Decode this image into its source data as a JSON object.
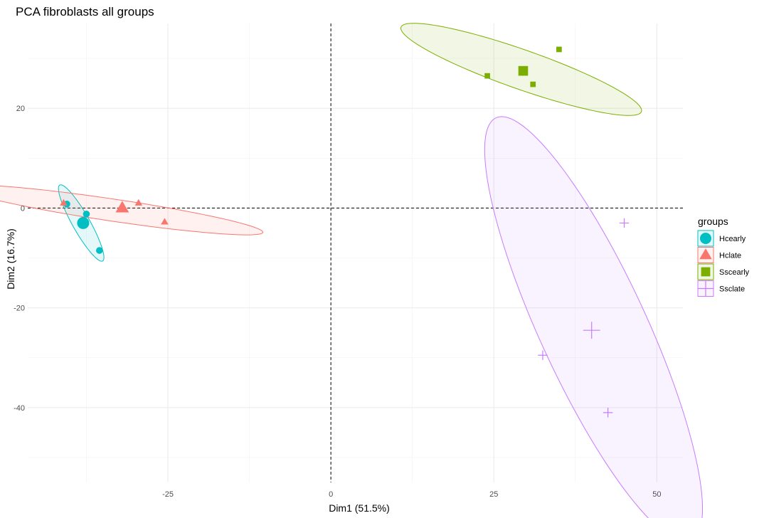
{
  "chart_data": {
    "type": "scatter",
    "title": "PCA fibroblasts all groups",
    "xlabel": "Dim1 (51.5%)",
    "ylabel": "Dim2 (16.7%)",
    "xlim": [
      -46.5,
      54
    ],
    "ylim": [
      -55,
      37
    ],
    "x_ticks": [
      -25,
      0,
      25,
      50
    ],
    "y_ticks": [
      20,
      0,
      -20,
      -40
    ],
    "x_tick_labels": [
      "-25",
      "0",
      "25",
      "50"
    ],
    "y_tick_labels": [
      "20",
      "0",
      "-20",
      "-40"
    ],
    "grid": true,
    "reference_lines": {
      "x": 0,
      "y": 0,
      "style": "dashed"
    },
    "legend": {
      "title": "groups",
      "position": "right"
    },
    "series": [
      {
        "name": "Hcearly",
        "color": "#00BFC4",
        "shape": "circle",
        "points": [
          [
            -40.5,
            0.8
          ],
          [
            -37.5,
            -1.2
          ],
          [
            -35.5,
            -8.5
          ]
        ],
        "centroid": [
          -38.0,
          -3.0
        ],
        "ellipse": {
          "center": [
            -38.3,
            -3.0
          ],
          "rx": 8.3,
          "ry": 1.4,
          "angle": -67
        }
      },
      {
        "name": "Hclate",
        "color": "#F8766D",
        "shape": "triangle",
        "points": [
          [
            -41,
            1.0
          ],
          [
            -29.5,
            1.0
          ],
          [
            -25.5,
            -2.8
          ]
        ],
        "centroid": [
          -32.0,
          0.0
        ],
        "ellipse": {
          "center": [
            -33.5,
            -0.4
          ],
          "rx": 23.5,
          "ry": 2.2,
          "angle": -11
        }
      },
      {
        "name": "Sscearly",
        "color": "#7CAE00",
        "shape": "square",
        "points": [
          [
            24.0,
            26.5
          ],
          [
            31.0,
            24.8
          ],
          [
            35.0,
            31.8
          ]
        ],
        "centroid": [
          29.5,
          27.5
        ],
        "ellipse": {
          "center": [
            29.2,
            27.8
          ],
          "rx": 20.3,
          "ry": 3.8,
          "angle": -25
        }
      },
      {
        "name": "Ssclate",
        "color": "#C77CFF",
        "shape": "plus",
        "points": [
          [
            45.0,
            -3.0
          ],
          [
            32.5,
            -29.5
          ],
          [
            42.5,
            -41.0
          ]
        ],
        "centroid": [
          40.0,
          -24.5
        ],
        "ellipse": {
          "center": [
            40.3,
            -24.3
          ],
          "rx": 45.0,
          "ry": 8.5,
          "angle": -71
        }
      }
    ]
  }
}
